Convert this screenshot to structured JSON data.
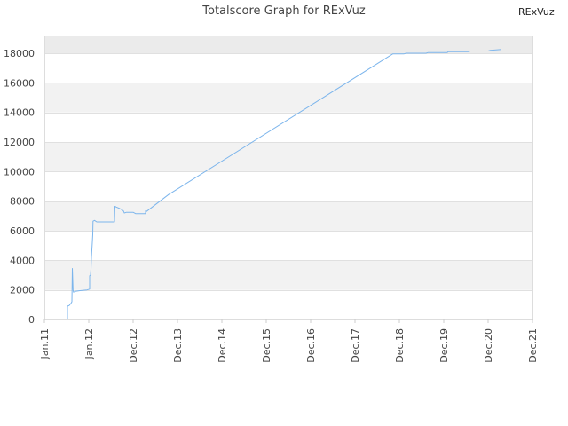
{
  "chart_data": {
    "type": "line",
    "title": "Totalscore Graph for RExVuz",
    "xlabel": "",
    "ylabel": "",
    "x_ticks": [
      "Jan.11",
      "Jan.12",
      "Dec.12",
      "Dec.13",
      "Dec.14",
      "Dec.15",
      "Dec.16",
      "Dec.17",
      "Dec.18",
      "Dec.19",
      "Dec.20",
      "Dec.21"
    ],
    "y_ticks": [
      0,
      2000,
      4000,
      6000,
      8000,
      10000,
      12000,
      14000,
      16000,
      18000
    ],
    "ylim": [
      0,
      19200
    ],
    "xlim": [
      0,
      11
    ],
    "grid": true,
    "legend_position": "top-right",
    "colors": {
      "series": "#7cb5ec",
      "band": "#f2f2f2",
      "band_top": "#ebebeb",
      "grid": "#e0e0e0"
    },
    "series": [
      {
        "name": "RExVuz",
        "points": [
          [
            0.52,
            0
          ],
          [
            0.52,
            900
          ],
          [
            0.56,
            950
          ],
          [
            0.6,
            1100
          ],
          [
            0.62,
            1200
          ],
          [
            0.63,
            3450
          ],
          [
            0.645,
            2000
          ],
          [
            0.655,
            1850
          ],
          [
            0.7,
            1900
          ],
          [
            0.8,
            1950
          ],
          [
            0.96,
            2000
          ],
          [
            1.02,
            2050
          ],
          [
            1.02,
            2950
          ],
          [
            1.04,
            3000
          ],
          [
            1.05,
            3400
          ],
          [
            1.06,
            4200
          ],
          [
            1.08,
            5200
          ],
          [
            1.09,
            5750
          ],
          [
            1.095,
            6650
          ],
          [
            1.13,
            6700
          ],
          [
            1.18,
            6600
          ],
          [
            1.34,
            6600
          ],
          [
            1.58,
            6600
          ],
          [
            1.59,
            7650
          ],
          [
            1.62,
            7600
          ],
          [
            1.7,
            7500
          ],
          [
            1.78,
            7350
          ],
          [
            1.8,
            7200
          ],
          [
            1.85,
            7250
          ],
          [
            2.0,
            7250
          ],
          [
            2.06,
            7150
          ],
          [
            2.15,
            7150
          ],
          [
            2.28,
            7150
          ],
          [
            2.28,
            7350
          ],
          [
            2.3,
            7300
          ],
          [
            2.8,
            8450
          ],
          [
            7.85,
            17950
          ],
          [
            8.1,
            17950
          ],
          [
            8.15,
            18000
          ],
          [
            8.6,
            18000
          ],
          [
            8.65,
            18050
          ],
          [
            9.08,
            18050
          ],
          [
            9.1,
            18100
          ],
          [
            9.55,
            18100
          ],
          [
            9.6,
            18150
          ],
          [
            10.0,
            18150
          ],
          [
            10.05,
            18200
          ],
          [
            10.3,
            18250
          ]
        ]
      }
    ]
  }
}
